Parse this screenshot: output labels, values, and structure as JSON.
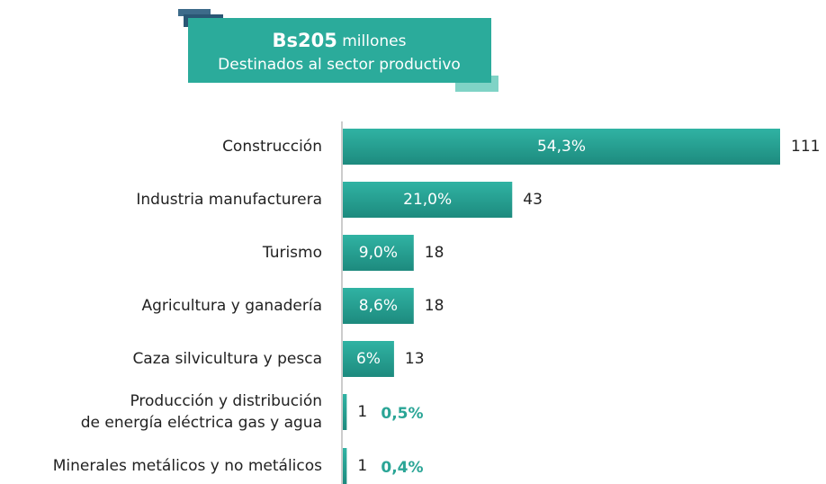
{
  "chart_data": {
    "type": "bar",
    "title_amount": "Bs205",
    "title_unit": "millones",
    "subtitle": "Destinados al sector productivo",
    "categories": [
      "Construcción",
      "Industria manufacturera",
      "Turismo",
      "Agricultura y ganadería",
      "Caza silvicultura y pesca",
      [
        "Producción y distribución",
        "de energía eléctrica gas y agua"
      ],
      "Minerales metálicos y no metálicos"
    ],
    "values": [
      111,
      43,
      18,
      18,
      13,
      1,
      1
    ],
    "shares": [
      54.3,
      21.0,
      9.0,
      8.6,
      6,
      0.5,
      0.4
    ],
    "share_labels": [
      "54,3%",
      "21,0%",
      "9,0%",
      "8,6%",
      "6%",
      "0,5%",
      "0,4%"
    ],
    "color": "#27a294"
  }
}
